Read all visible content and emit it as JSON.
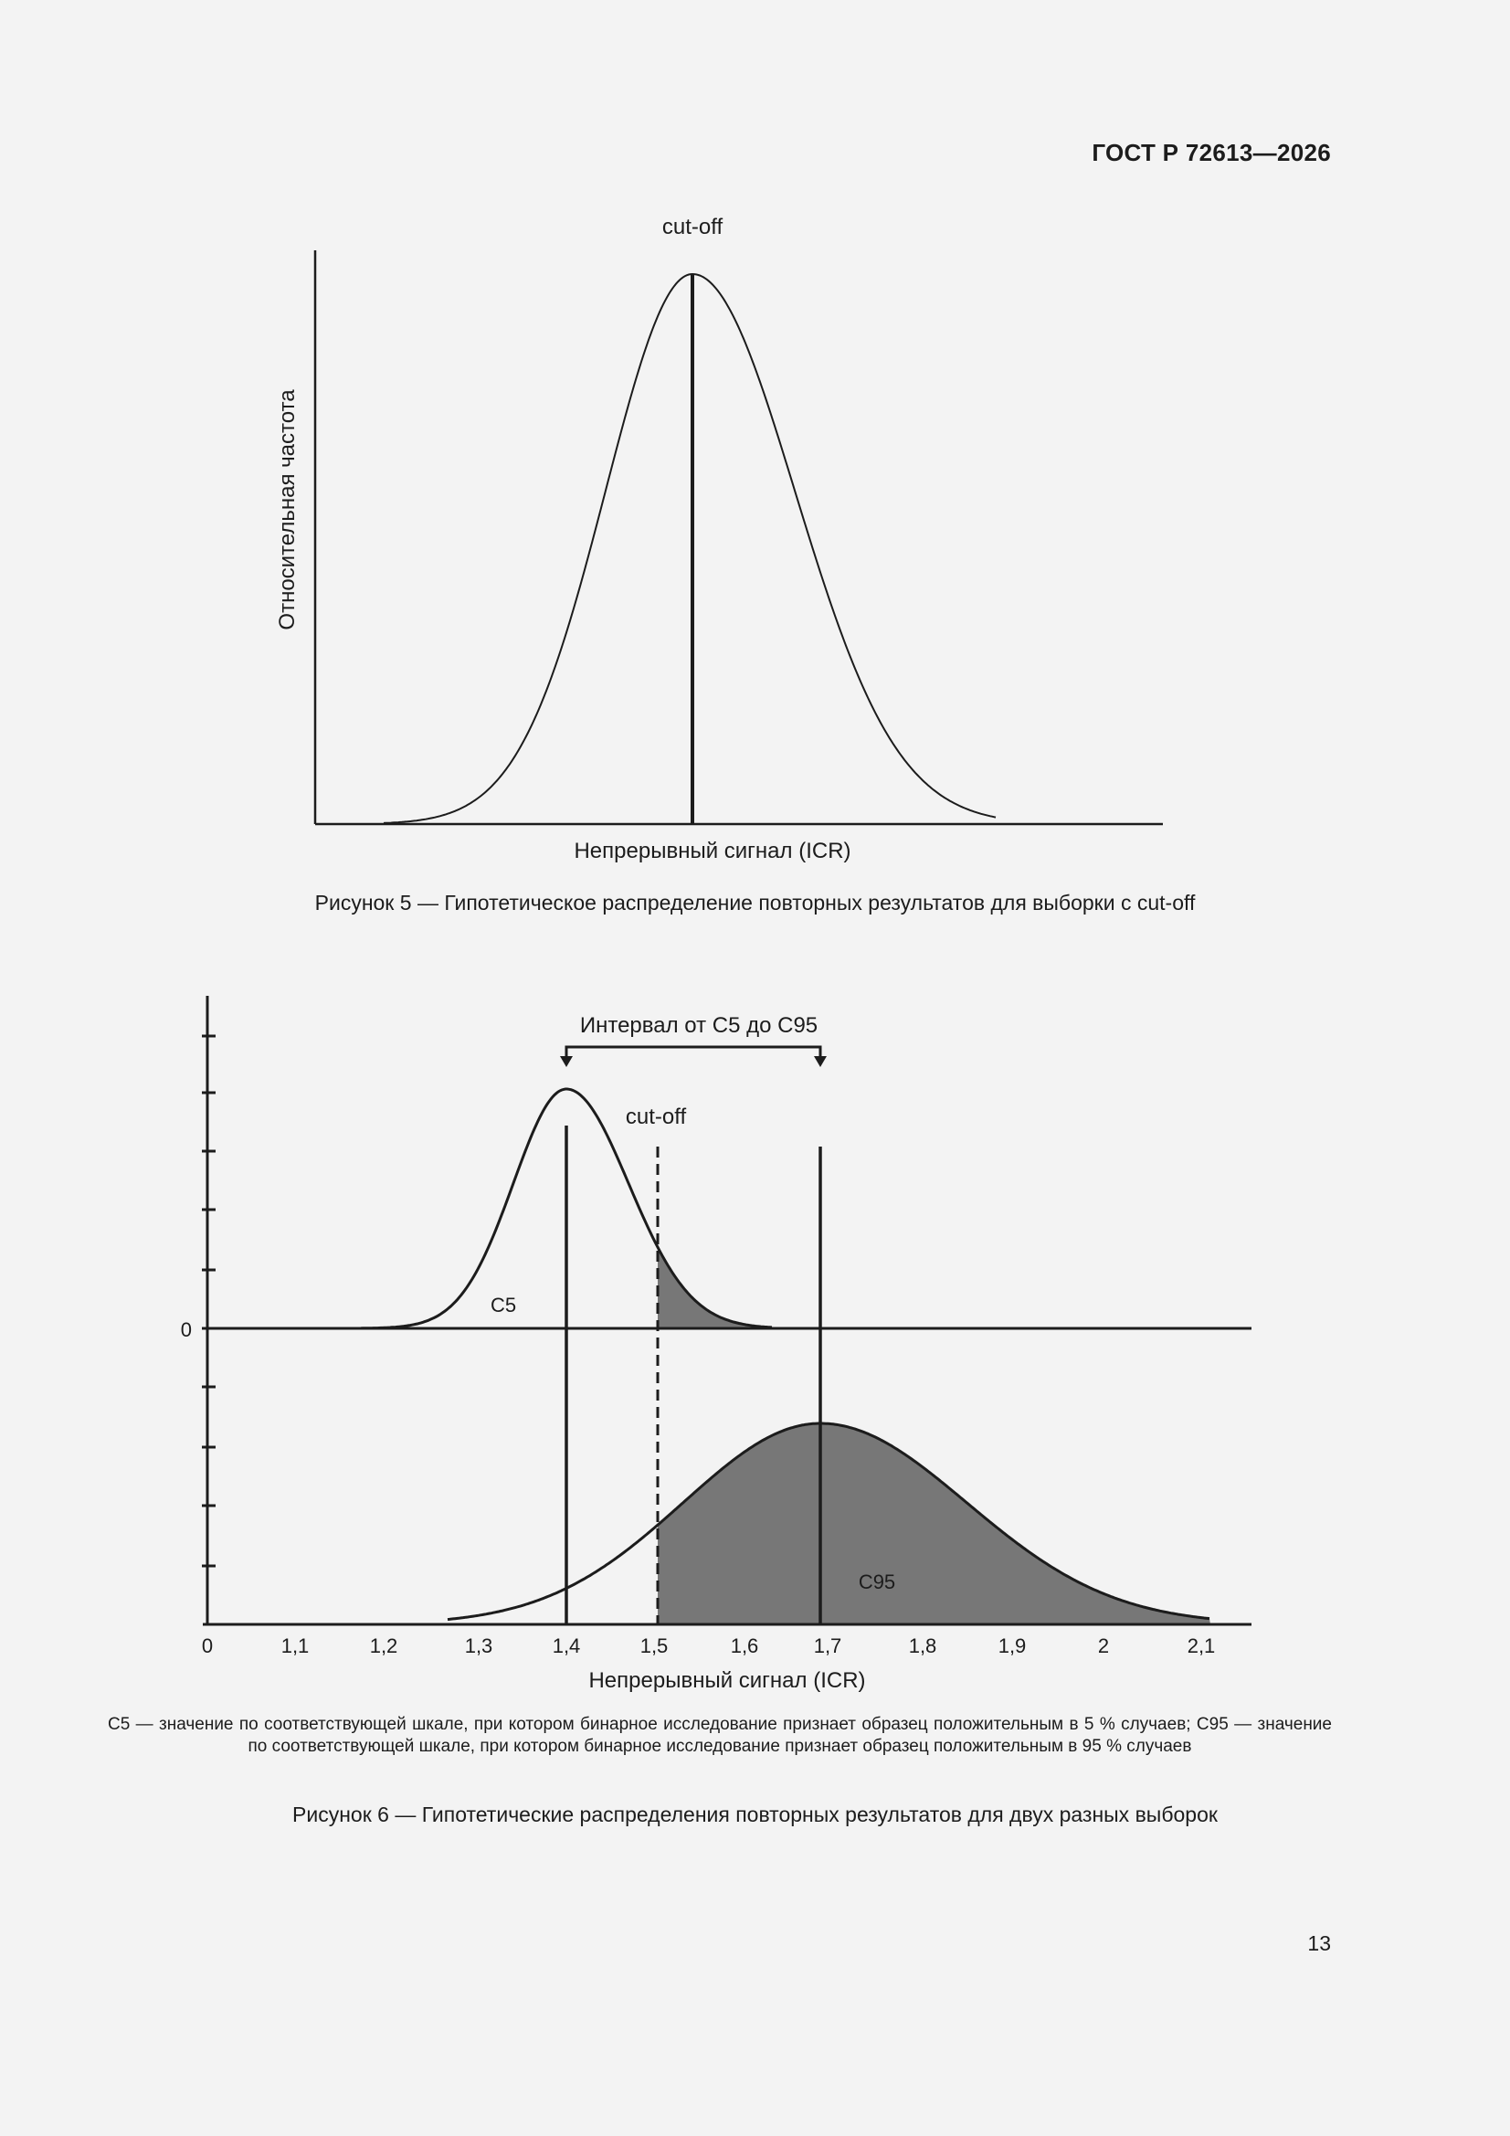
{
  "header": {
    "standard": "ГОСТ Р 72613—2026"
  },
  "figure5": {
    "cutoff_label": "cut-off",
    "xlabel": "Непрерывный сигнал (ICR)",
    "ylabel": "Относительная частота",
    "caption": "Рисунок 5 — Гипотетическое распределение повторных результатов для выборки с cut-off"
  },
  "figure6": {
    "interval_label": "Интервал от С5 до С95",
    "cutoff_label": "cut-off",
    "c5_label": "С5",
    "c95_label": "С95",
    "zero_label": "0",
    "xlabel": "Непрерывный сигнал (ICR)",
    "x_ticks": [
      "0",
      "1,1",
      "1,2",
      "1,3",
      "1,4",
      "1,5",
      "1,6",
      "1,7",
      "1,8",
      "1,9",
      "2",
      "2,1"
    ],
    "note": "С5 — значение по соответствующей шкале, при котором бинарное исследование признает образец положительным в 5 % случаев; С95 — значение по соответствующей шкале, при котором бинарное исследование признает образец положительным в 95 % случаев",
    "caption": "Рисунок 6 — Гипотетические распределения повторных результатов для двух разных выборок"
  },
  "chart_data": [
    {
      "type": "area",
      "description_source": "figure 5",
      "title": "",
      "xlabel": "Непрерывный сигнал (ICR)",
      "ylabel": "Относительная частота",
      "series": [
        {
          "shape": "normal",
          "peak_at": "cut-off"
        }
      ],
      "annotations": [
        "cut-off"
      ]
    },
    {
      "type": "area",
      "description_source": "figure 6",
      "title": "",
      "xlabel": "Непрерывный сигнал (ICR)",
      "x": [
        "0",
        "1,1",
        "1,2",
        "1,3",
        "1,4",
        "1,5",
        "1,6",
        "1,7",
        "1,8",
        "1,9",
        "2",
        "2,1"
      ],
      "series": [
        {
          "name": "С5",
          "peak_x": 1.4,
          "shaded_from": 1.5
        },
        {
          "name": "С95",
          "peak_x": 1.69,
          "shaded_from": 1.5
        }
      ],
      "cutoff_x": 1.5,
      "interval": {
        "label": "Интервал от С5 до С95",
        "from": 1.4,
        "to": 1.69
      }
    }
  ]
}
